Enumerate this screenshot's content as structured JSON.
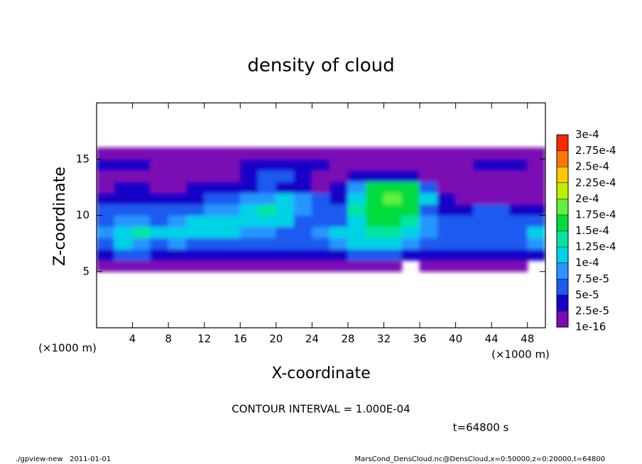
{
  "chart_data": {
    "type": "heatmap",
    "title": "density of cloud",
    "xlabel": "X-coordinate",
    "ylabel": "Z-coordinate",
    "x_unit": "(×1000 m)",
    "y_unit": "(×1000 m)",
    "contour_label": "CONTOUR INTERVAL = 1.000E-04",
    "time_label": "t=64800 s",
    "footer_left": "./gpview-new   2011-01-01",
    "footer_right": "MarsCond_DensCloud.nc@DensCloud,x=0:50000,z=0:20000,t=64800",
    "xlim": [
      0,
      50
    ],
    "xticks": [
      4,
      8,
      12,
      16,
      20,
      24,
      28,
      32,
      36,
      40,
      44,
      48
    ],
    "ylim": [
      0,
      20
    ],
    "yticks": [
      5,
      10,
      15
    ],
    "x": [
      1,
      3,
      5,
      7,
      9,
      11,
      13,
      15,
      17,
      19,
      21,
      23,
      25,
      27,
      29,
      31,
      33,
      35,
      37,
      39,
      41,
      43,
      45,
      47,
      49
    ],
    "y": [
      5.5,
      6.5,
      7.5,
      8.5,
      9.5,
      10.5,
      11.5,
      12.5,
      13.5,
      14.5,
      15.5
    ],
    "z": [
      [
        1e-05,
        2e-05,
        2e-05,
        1e-05,
        1e-05,
        1e-05,
        1e-05,
        1e-05,
        1e-05,
        1e-05,
        1e-05,
        1e-05,
        1e-05,
        1e-05,
        1e-05,
        1e-05,
        1e-05,
        null,
        1e-05,
        1e-05,
        1e-05,
        1e-05,
        1e-05,
        1e-05,
        null
      ],
      [
        4e-05,
        5e-05,
        5e-05,
        4e-05,
        4e-05,
        4e-05,
        3e-05,
        3e-05,
        3e-05,
        3e-05,
        3e-05,
        3e-05,
        3e-05,
        4e-05,
        5e-05,
        5e-05,
        5e-05,
        4e-05,
        4e-05,
        3e-05,
        4e-05,
        4e-05,
        4e-05,
        4e-05,
        4e-05
      ],
      [
        6e-05,
        0.0001,
        9e-05,
        7e-05,
        8e-05,
        7e-05,
        6e-05,
        6e-05,
        5e-05,
        5e-05,
        5e-05,
        5e-05,
        6e-05,
        8e-05,
        0.0001,
        0.00011,
        0.0001,
        8e-05,
        7e-05,
        6e-05,
        5e-05,
        6e-05,
        6e-05,
        6e-05,
        9e-05
      ],
      [
        9e-05,
        0.00012,
        0.00013,
        0.0001,
        0.00011,
        0.00012,
        0.00011,
        0.0001,
        9e-05,
        8e-05,
        7e-05,
        6e-05,
        8e-05,
        0.0001,
        0.00012,
        0.00013,
        0.00013,
        0.00011,
        9e-05,
        7e-05,
        6e-05,
        7e-05,
        7e-05,
        6e-05,
        0.0001
      ],
      [
        7e-05,
        8e-05,
        8e-05,
        7e-05,
        9e-05,
        0.0001,
        0.00011,
        0.00012,
        0.00012,
        0.00012,
        0.0001,
        6e-05,
        5e-05,
        7e-05,
        0.00012,
        0.00015,
        0.00016,
        0.00014,
        9e-05,
        6e-05,
        5e-05,
        6e-05,
        6e-05,
        5e-05,
        6e-05
      ],
      [
        6e-05,
        7e-05,
        6e-05,
        6e-05,
        6e-05,
        7e-05,
        8e-05,
        9e-05,
        0.00011,
        0.00013,
        0.00012,
        8e-05,
        5e-05,
        5e-05,
        0.00013,
        0.00016,
        0.00017,
        0.00015,
        7e-05,
        4e-05,
        4e-05,
        5e-05,
        5e-05,
        4e-05,
        3e-05
      ],
      [
        3e-05,
        4e-05,
        4e-05,
        4e-05,
        4e-05,
        4e-05,
        5e-05,
        6e-05,
        8e-05,
        9e-05,
        0.0001,
        8e-05,
        5e-05,
        4e-05,
        0.0001,
        0.00016,
        0.00018,
        0.00017,
        0.00012,
        3e-05,
        2e-05,
        2e-05,
        2e-05,
        2e-05,
        2e-05
      ],
      [
        2e-05,
        3e-05,
        3e-05,
        2e-05,
        2e-05,
        3e-05,
        4e-05,
        4e-05,
        4e-05,
        5e-05,
        4e-05,
        3e-05,
        2e-05,
        3e-05,
        8e-05,
        0.00015,
        0.00017,
        0.00015,
        5e-05,
        2e-05,
        1e-05,
        1e-05,
        1e-05,
        1e-05,
        1e-05
      ],
      [
        1e-05,
        2e-05,
        1e-05,
        1e-05,
        1e-05,
        1e-05,
        1e-05,
        2e-05,
        3e-05,
        5e-05,
        6e-05,
        3e-05,
        1e-05,
        1e-05,
        3e-05,
        4e-05,
        4e-05,
        4e-05,
        2e-05,
        1e-05,
        1e-05,
        1e-05,
        1e-05,
        2e-05,
        1e-05
      ],
      [
        4e-05,
        4e-05,
        3e-05,
        1e-05,
        1e-05,
        1e-05,
        1e-05,
        2e-05,
        3e-05,
        4e-05,
        4e-05,
        4e-05,
        3e-05,
        2e-05,
        1e-05,
        1e-05,
        1e-05,
        1e-05,
        1e-05,
        1e-05,
        2e-05,
        3e-05,
        3e-05,
        3e-05,
        1e-05
      ],
      [
        1e-05,
        1e-05,
        1e-05,
        1e-05,
        1e-05,
        1e-05,
        1e-05,
        1e-05,
        1e-05,
        1e-05,
        1e-05,
        1e-05,
        1e-05,
        1e-05,
        1e-05,
        1e-05,
        1e-05,
        1e-05,
        1e-05,
        1e-05,
        1e-05,
        1e-05,
        1e-05,
        1e-05,
        1e-05
      ]
    ],
    "colorbar": {
      "levels": [
        1e-16,
        {
          "value": 2.5e-05,
          "label": "2.5e-5"
        },
        {
          "value": 5e-05,
          "label": "5e-5"
        },
        {
          "value": 7.5e-05,
          "label": "7.5e-5"
        },
        {
          "value": 0.0001,
          "label": "1e-4"
        },
        {
          "value": 0.000125,
          "label": "1.25e-4"
        },
        {
          "value": 0.00015,
          "label": "1.5e-4"
        },
        {
          "value": 0.000175,
          "label": "1.75e-4"
        },
        {
          "value": 0.0002,
          "label": "2e-4"
        },
        {
          "value": 0.000225,
          "label": "2.25e-4"
        },
        {
          "value": 0.00025,
          "label": "2.5e-4"
        },
        {
          "value": 0.000275,
          "label": "2.75e-4"
        },
        {
          "value": 0.0003,
          "label": "3e-4"
        }
      ],
      "colors": [
        "#7a0ab4",
        "#1400c8",
        "#1e5af0",
        "#2896ff",
        "#00d2e6",
        "#00e6a0",
        "#00dc3c",
        "#64f03c",
        "#bef000",
        "#ffc800",
        "#ff7800",
        "#ff2800",
        "#ff8c8c"
      ]
    }
  }
}
